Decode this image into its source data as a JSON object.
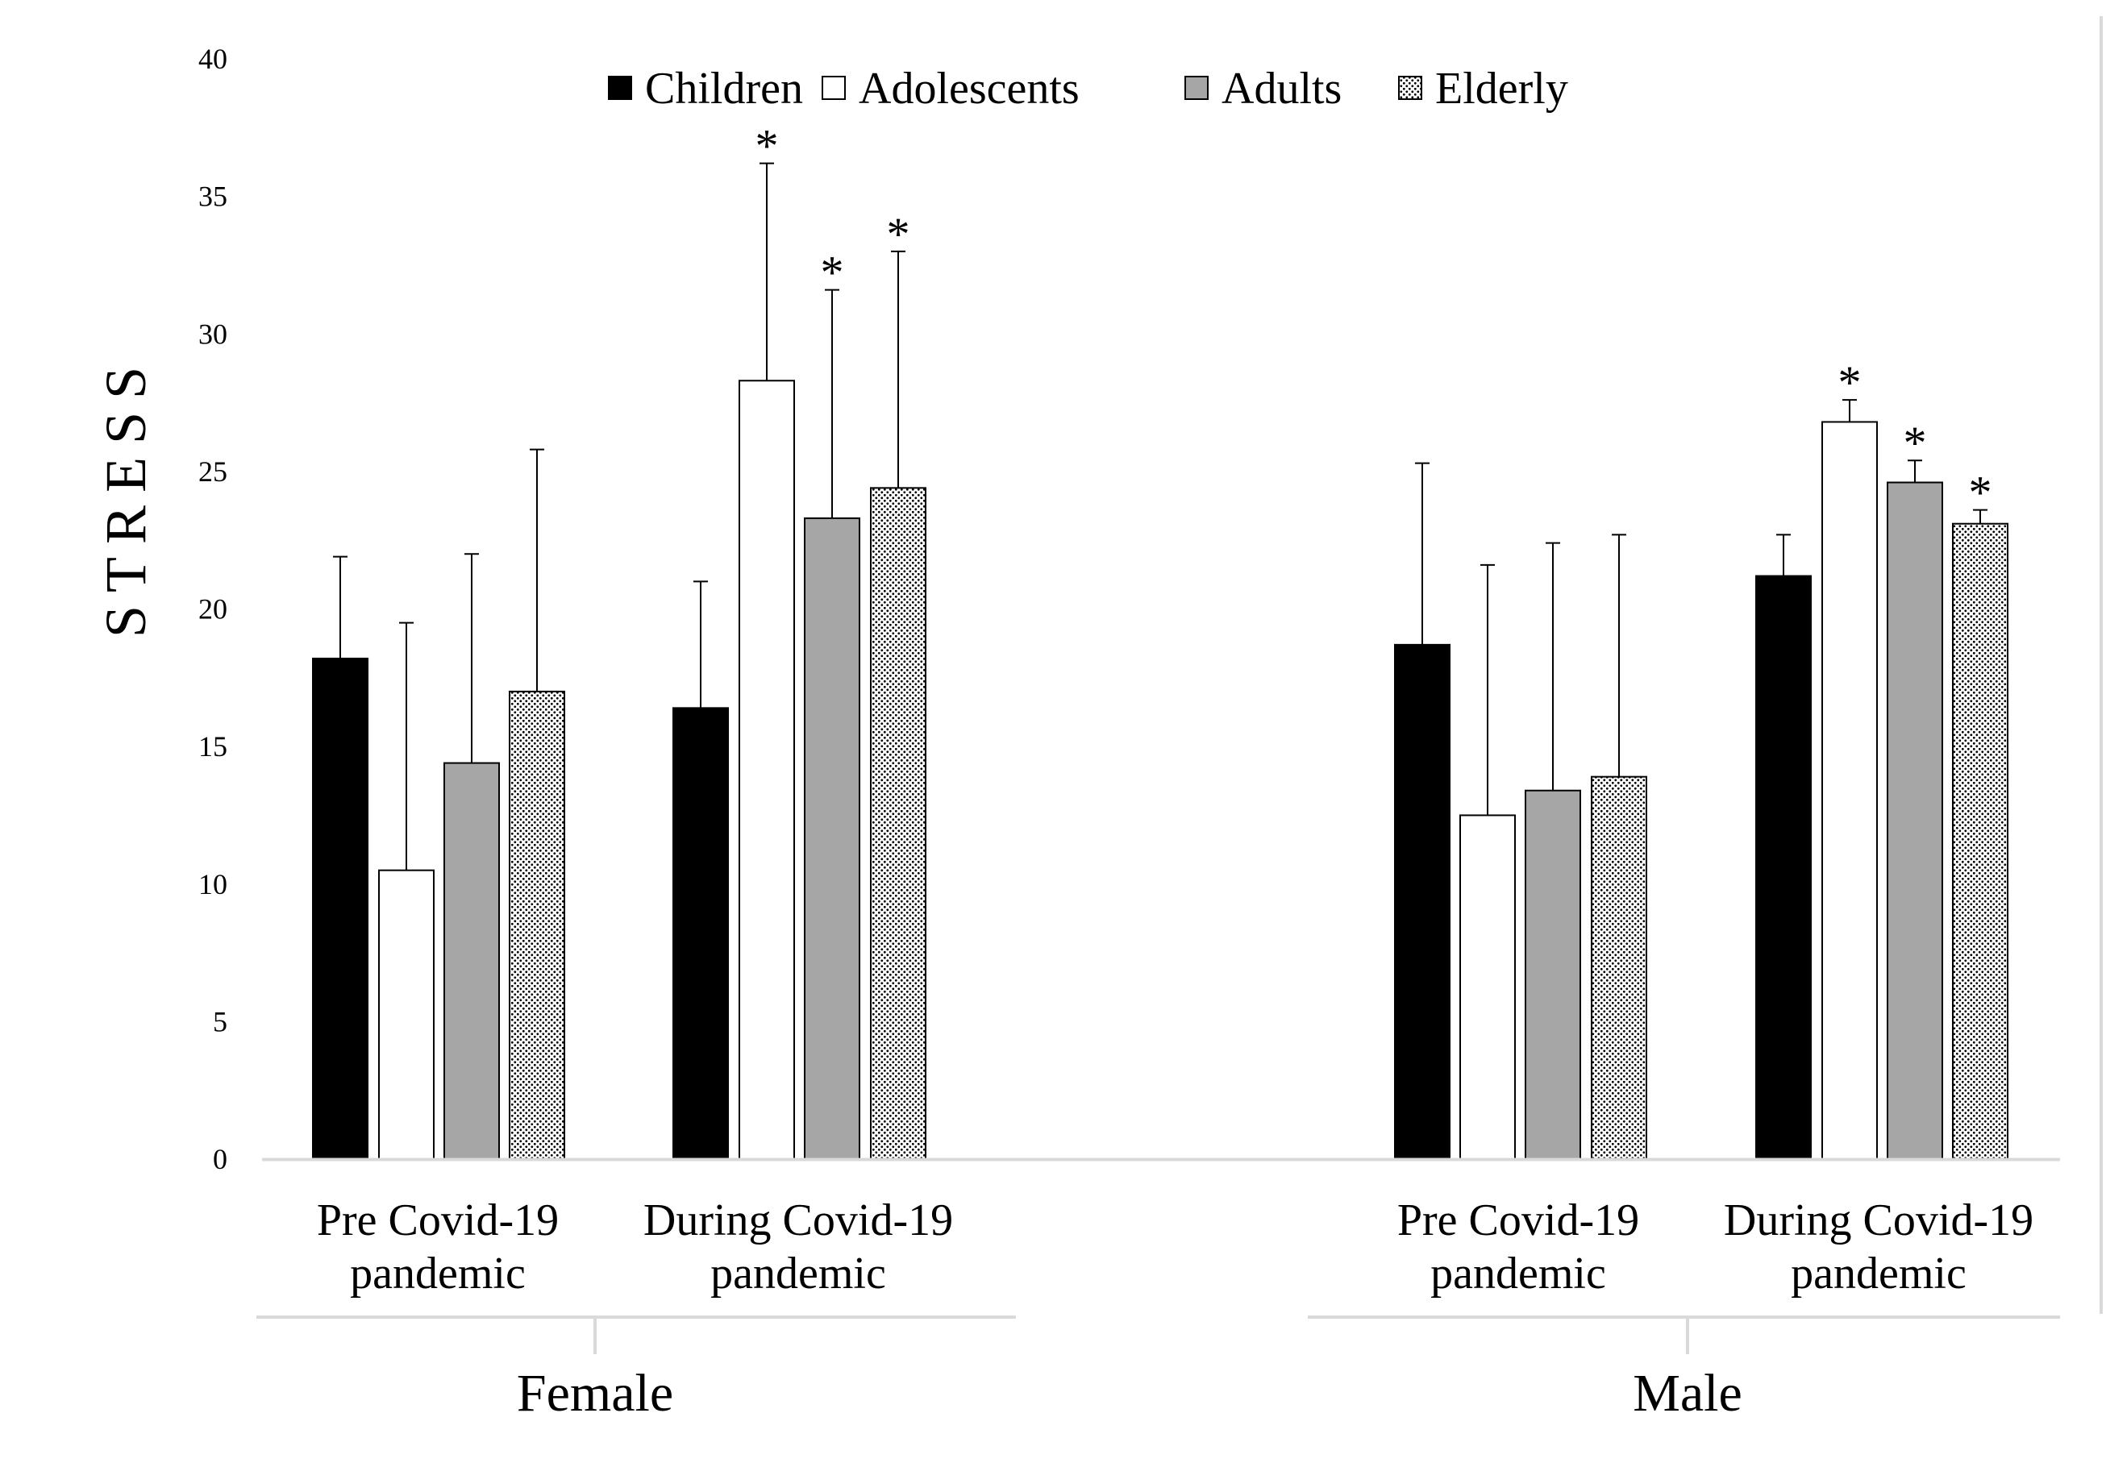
{
  "chart_data": {
    "type": "bar",
    "ylabel": "STRESS",
    "xlabel": "",
    "ylim": [
      0,
      40
    ],
    "yticks": [
      0,
      5,
      10,
      15,
      20,
      25,
      30,
      35,
      40
    ],
    "legend_position": "top-center",
    "grid": false,
    "groups": [
      {
        "label": "Female",
        "categories": [
          {
            "label_lines": [
              "Pre Covid-19",
              "pandemic"
            ],
            "values": [
              18.2,
              10.5,
              14.4,
              17.0
            ],
            "error": [
              3.7,
              9.0,
              7.6,
              8.8
            ],
            "significant": [
              false,
              false,
              false,
              false
            ]
          },
          {
            "label_lines": [
              "During Covid-19",
              "pandemic"
            ],
            "values": [
              16.4,
              28.3,
              23.3,
              24.4
            ],
            "error": [
              4.6,
              7.9,
              8.3,
              8.6
            ],
            "significant": [
              false,
              true,
              true,
              true
            ]
          }
        ]
      },
      {
        "label": "Male",
        "categories": [
          {
            "label_lines": [
              "Pre Covid-19",
              "pandemic"
            ],
            "values": [
              18.7,
              12.5,
              13.4,
              13.9
            ],
            "error": [
              6.6,
              9.1,
              9.0,
              8.8
            ],
            "significant": [
              false,
              false,
              false,
              false
            ]
          },
          {
            "label_lines": [
              "During Covid-19",
              "pandemic"
            ],
            "values": [
              21.2,
              26.8,
              24.6,
              23.1
            ],
            "error": [
              1.5,
              0.8,
              0.8,
              0.5
            ],
            "significant": [
              false,
              true,
              true,
              true
            ]
          }
        ]
      }
    ],
    "series": [
      {
        "name": "Children",
        "fill": "#000000",
        "pattern": "solid"
      },
      {
        "name": "Adolescents",
        "fill": "#ffffff",
        "pattern": "solid"
      },
      {
        "name": "Adults",
        "fill": "#a6a6a6",
        "pattern": "solid"
      },
      {
        "name": "Elderly",
        "fill": "#2b2b2b",
        "pattern": "dots"
      }
    ],
    "significance_marker": "*"
  }
}
